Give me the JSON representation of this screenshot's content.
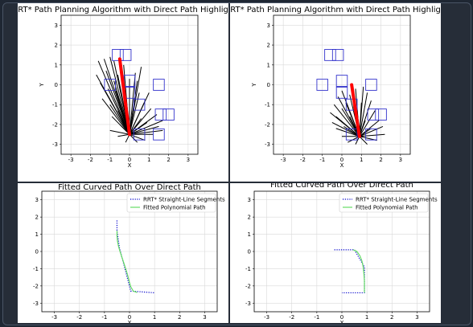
{
  "chart_data": [
    {
      "type": "scatter",
      "title": "RRT* Path Planning Algorithm with Direct Path Highlighted",
      "xlabel": "X",
      "ylabel": "Y",
      "xlim": [
        -3.5,
        3.5
      ],
      "ylim": [
        -3.5,
        3.5
      ],
      "xticks": [
        -3,
        -2,
        -1,
        0,
        1,
        2,
        3
      ],
      "yticks": [
        -3,
        -2,
        -1,
        0,
        1,
        2,
        3
      ],
      "grid": true,
      "colors": {
        "tree": "#000000",
        "obstacle": "#3333cc",
        "path": "#ff0000"
      },
      "tree_root": [
        0.0,
        -2.5
      ],
      "tree_tips": [
        [
          -1.6,
          1.2
        ],
        [
          -1.3,
          1.3
        ],
        [
          -1.0,
          1.4
        ],
        [
          -0.8,
          1.2
        ],
        [
          -1.7,
          0.5
        ],
        [
          -1.2,
          0.7
        ],
        [
          -0.6,
          0.5
        ],
        [
          -1.5,
          0.1
        ],
        [
          -1.1,
          -0.2
        ],
        [
          -0.7,
          -0.3
        ],
        [
          -1.4,
          -0.7
        ],
        [
          -1.0,
          -1.0
        ],
        [
          -0.6,
          -1.3
        ],
        [
          -0.9,
          -1.6
        ],
        [
          -0.5,
          -2.0
        ],
        [
          -1.0,
          -2.3
        ],
        [
          -0.6,
          -2.6
        ],
        [
          0.3,
          0.6
        ],
        [
          0.4,
          0.2
        ],
        [
          0.5,
          -0.4
        ],
        [
          0.8,
          -0.8
        ],
        [
          1.1,
          -1.2
        ],
        [
          1.4,
          -1.5
        ],
        [
          1.7,
          -1.8
        ],
        [
          1.5,
          -2.1
        ],
        [
          1.2,
          -2.5
        ],
        [
          0.8,
          -2.8
        ],
        [
          0.4,
          -2.9
        ],
        [
          -0.2,
          -2.9
        ],
        [
          1.7,
          -2.3
        ],
        [
          0.9,
          -1.9
        ],
        [
          0.6,
          -1.7
        ],
        [
          -0.3,
          1.0
        ],
        [
          0.0,
          0.3
        ],
        [
          -0.2,
          -0.6
        ],
        [
          0.2,
          -1.2
        ],
        [
          0.6,
          0.9
        ],
        [
          -0.4,
          -1.8
        ],
        [
          1.0,
          -0.4
        ],
        [
          -0.8,
          0.2
        ]
      ],
      "obstacles": [
        [
          -1.0,
          0.0
        ],
        [
          -0.6,
          1.5
        ],
        [
          -0.2,
          1.5
        ],
        [
          0.0,
          -0.4
        ],
        [
          0.0,
          0.2
        ],
        [
          0.5,
          -1.0
        ],
        [
          1.5,
          0.0
        ],
        [
          1.6,
          -1.5
        ],
        [
          2.0,
          -1.5
        ],
        [
          0.5,
          -2.5
        ],
        [
          1.5,
          -2.5
        ]
      ],
      "direct_path": [
        [
          -0.5,
          1.3
        ],
        [
          0.0,
          -2.5
        ]
      ]
    },
    {
      "type": "scatter",
      "title": "RRT* Path Planning Algorithm with Direct Path Highlighted",
      "xlabel": "X",
      "ylabel": "Y",
      "xlim": [
        -3.5,
        3.5
      ],
      "ylim": [
        -3.5,
        3.5
      ],
      "xticks": [
        -3,
        -2,
        -1,
        0,
        1,
        2,
        3
      ],
      "yticks": [
        -3,
        -2,
        -1,
        0,
        1,
        2,
        3
      ],
      "grid": true,
      "colors": {
        "tree": "#000000",
        "obstacle": "#3333cc",
        "path": "#ff0000"
      },
      "tree_root": [
        0.9,
        -2.6
      ],
      "tree_tips": [
        [
          -0.6,
          -1.4
        ],
        [
          -0.4,
          -1.0
        ],
        [
          -0.2,
          -0.6
        ],
        [
          0.0,
          -0.3
        ],
        [
          -0.5,
          -1.9
        ],
        [
          -0.3,
          -2.2
        ],
        [
          0.0,
          -2.6
        ],
        [
          0.3,
          -2.9
        ],
        [
          0.7,
          -3.0
        ],
        [
          1.3,
          -3.0
        ],
        [
          1.8,
          -2.8
        ],
        [
          2.2,
          -2.5
        ],
        [
          2.1,
          -2.1
        ],
        [
          1.9,
          -1.8
        ],
        [
          1.7,
          -1.3
        ],
        [
          1.5,
          -0.8
        ],
        [
          1.3,
          -0.4
        ],
        [
          1.1,
          -0.1
        ],
        [
          0.7,
          -0.2
        ],
        [
          0.4,
          -0.5
        ],
        [
          0.2,
          -0.9
        ],
        [
          0.0,
          -1.2
        ],
        [
          0.6,
          -1.1
        ],
        [
          1.0,
          -0.9
        ],
        [
          1.2,
          -1.8
        ],
        [
          0.4,
          -1.6
        ],
        [
          -0.3,
          -1.6
        ],
        [
          0.1,
          -2.1
        ],
        [
          1.5,
          -2.2
        ],
        [
          0.8,
          -1.5
        ]
      ],
      "obstacles": [
        [
          -1.0,
          0.0
        ],
        [
          -0.6,
          1.5
        ],
        [
          -0.2,
          1.5
        ],
        [
          0.0,
          -0.4
        ],
        [
          0.0,
          0.2
        ],
        [
          0.5,
          -1.0
        ],
        [
          1.5,
          0.0
        ],
        [
          1.6,
          -1.5
        ],
        [
          2.0,
          -1.5
        ],
        [
          0.5,
          -2.5
        ],
        [
          1.5,
          -2.5
        ]
      ],
      "direct_path": [
        [
          0.5,
          0.0
        ],
        [
          0.9,
          -2.6
        ]
      ]
    },
    {
      "type": "line",
      "title": "Fitted Curved Path Over Direct Path",
      "xlabel": "X",
      "ylabel": "",
      "xlim": [
        -3.5,
        3.5
      ],
      "ylim": [
        -3.5,
        3.5
      ],
      "xticks": [
        -3,
        -2,
        -1,
        0,
        1,
        2,
        3
      ],
      "yticks": [
        -3,
        -2,
        -1,
        0,
        1,
        2,
        3
      ],
      "grid": true,
      "legend_position": "top-right",
      "series": [
        {
          "name": "RRT* Straight-Line Segments",
          "color": "#0000cc",
          "style": "dotted",
          "points": [
            [
              -0.5,
              1.8
            ],
            [
              -0.5,
              1.2
            ],
            [
              -0.4,
              0.2
            ],
            [
              -0.2,
              -0.9
            ],
            [
              0.05,
              -2.3
            ],
            [
              1.0,
              -2.4
            ]
          ]
        },
        {
          "name": "Fitted Polynomial Path",
          "color": "#66dd66",
          "style": "solid",
          "points": [
            [
              -0.5,
              1.2
            ],
            [
              -0.5,
              0.9
            ],
            [
              -0.48,
              0.6
            ],
            [
              -0.44,
              0.3
            ],
            [
              -0.38,
              0.0
            ],
            [
              -0.3,
              -0.35
            ],
            [
              -0.22,
              -0.7
            ],
            [
              -0.14,
              -1.05
            ],
            [
              -0.07,
              -1.4
            ],
            [
              -0.01,
              -1.75
            ],
            [
              0.05,
              -2.05
            ],
            [
              0.15,
              -2.3
            ],
            [
              0.3,
              -2.38
            ]
          ]
        }
      ]
    },
    {
      "type": "line",
      "title": "Fitted Curved Path Over Direct Path",
      "xlabel": "X",
      "ylabel": "",
      "xlim": [
        -3.5,
        3.5
      ],
      "ylim": [
        -3.5,
        3.5
      ],
      "xticks": [
        -3,
        -2,
        -1,
        0,
        1,
        2,
        3
      ],
      "yticks": [
        -3,
        -2,
        -1,
        0,
        1,
        2,
        3
      ],
      "grid": true,
      "legend_position": "top-right",
      "series": [
        {
          "name": "RRT* Straight-Line Segments",
          "color": "#0000cc",
          "style": "dotted",
          "points": [
            [
              -0.3,
              0.1
            ],
            [
              0.5,
              0.1
            ],
            [
              0.9,
              -0.9
            ],
            [
              0.9,
              -2.4
            ],
            [
              0.0,
              -2.4
            ]
          ]
        },
        {
          "name": "Fitted Polynomial Path",
          "color": "#66dd66",
          "style": "solid",
          "points": [
            [
              0.45,
              0.1
            ],
            [
              0.6,
              0.0
            ],
            [
              0.72,
              -0.25
            ],
            [
              0.8,
              -0.55
            ],
            [
              0.85,
              -0.9
            ],
            [
              0.88,
              -1.3
            ],
            [
              0.9,
              -1.7
            ],
            [
              0.9,
              -2.05
            ],
            [
              0.9,
              -2.4
            ]
          ]
        }
      ]
    }
  ]
}
